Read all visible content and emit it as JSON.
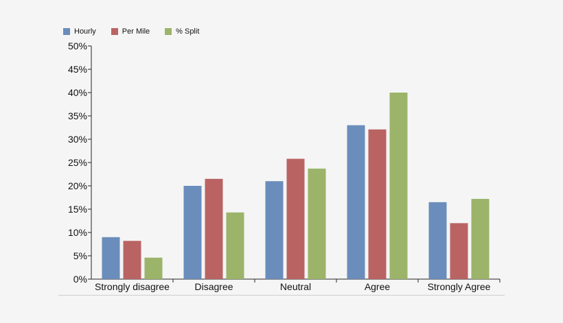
{
  "chart_data": {
    "type": "bar",
    "categories": [
      "Strongly disagree",
      "Disagree",
      "Neutral",
      "Agree",
      "Strongly Agree"
    ],
    "series": [
      {
        "name": "Hourly",
        "color": "#6a8dbb",
        "values": [
          9,
          20,
          21,
          33,
          16.5
        ]
      },
      {
        "name": "Per Mile",
        "color": "#ba6363",
        "values": [
          8.2,
          21.5,
          25.8,
          32.1,
          12
        ]
      },
      {
        "name": "% Split",
        "color": "#9bb46a",
        "values": [
          4.6,
          14.3,
          23.7,
          40,
          17.2
        ]
      }
    ],
    "yticks": [
      "0%",
      "5%",
      "10%",
      "15%",
      "20%",
      "25%",
      "30%",
      "35%",
      "40%",
      "45%",
      "50%"
    ],
    "ylim": [
      0,
      50
    ],
    "legend_position": "top-left",
    "grid": false
  }
}
